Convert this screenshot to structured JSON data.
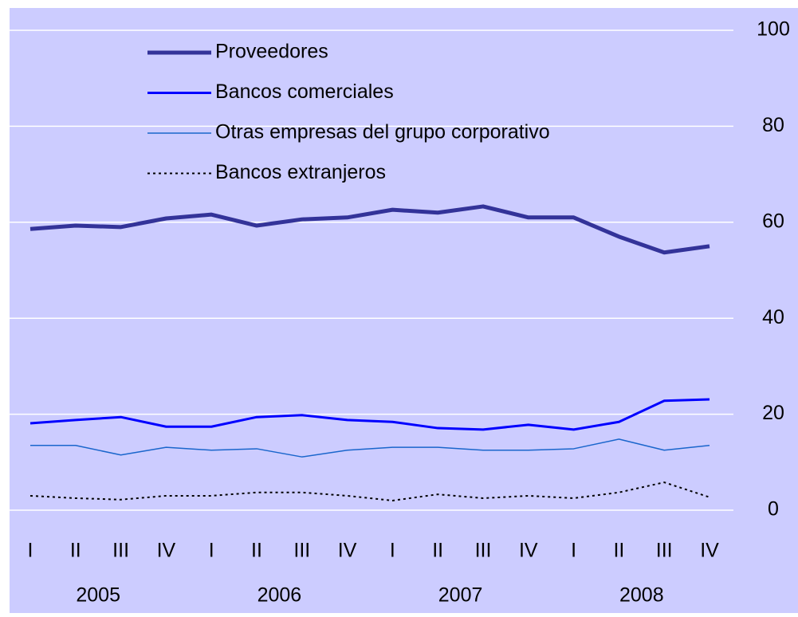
{
  "chart_data": {
    "type": "line",
    "categories": [
      "I",
      "II",
      "III",
      "IV",
      "I",
      "II",
      "III",
      "IV",
      "I",
      "II",
      "III",
      "IV",
      "I",
      "II",
      "III",
      "IV"
    ],
    "years": [
      "2005",
      "2006",
      "2007",
      "2008"
    ],
    "series": [
      {
        "name": "Proveedores",
        "color": "#333399",
        "style": "solid",
        "width": 5,
        "values": [
          58.6,
          59.3,
          59.0,
          60.8,
          61.6,
          59.3,
          60.6,
          61.0,
          62.6,
          62.0,
          63.3,
          61.0,
          61.0,
          57.0,
          53.7,
          55.0
        ]
      },
      {
        "name": "Bancos comerciales",
        "color": "#0000ff",
        "style": "solid",
        "width": 3,
        "values": [
          18.1,
          18.8,
          19.4,
          17.4,
          17.4,
          19.4,
          19.8,
          18.8,
          18.4,
          17.1,
          16.8,
          17.8,
          16.8,
          18.4,
          22.8,
          23.1
        ]
      },
      {
        "name": "Otras empresas del grupo corporativo",
        "color": "#1a66cc",
        "style": "solid",
        "width": 1.5,
        "values": [
          13.5,
          13.5,
          11.5,
          13.1,
          12.5,
          12.8,
          11.1,
          12.5,
          13.1,
          13.1,
          12.5,
          12.5,
          12.8,
          14.8,
          12.5,
          13.5
        ]
      },
      {
        "name": "Bancos extranjeros",
        "color": "#000000",
        "style": "dotted",
        "width": 2,
        "values": [
          3.0,
          2.5,
          2.2,
          3.0,
          3.0,
          3.7,
          3.7,
          3.0,
          2.0,
          3.3,
          2.5,
          3.0,
          2.5,
          3.7,
          5.8,
          2.7
        ]
      }
    ],
    "ylim": [
      0,
      100
    ],
    "yticks": [
      0,
      20,
      40,
      60,
      80,
      100
    ],
    "grid": true,
    "y_axis_side": "right",
    "legend": "upper left"
  }
}
